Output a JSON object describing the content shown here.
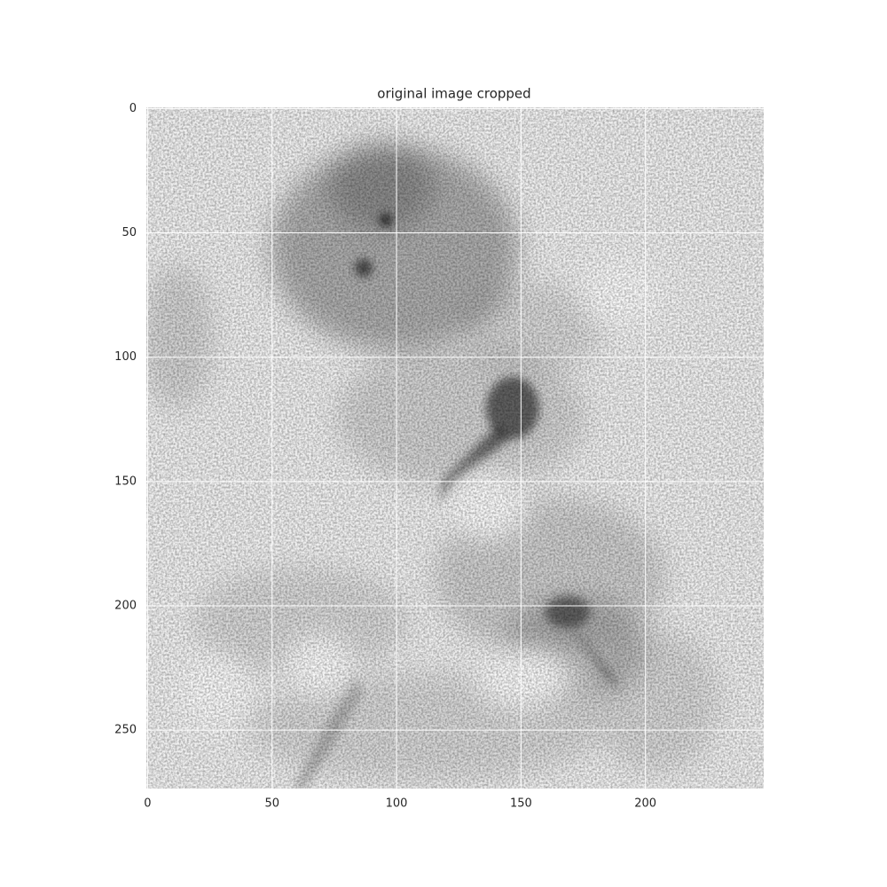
{
  "chart_data": {
    "type": "image",
    "title": "original image cropped",
    "xlim": [
      -0.5,
      247.5
    ],
    "ylim": [
      273.5,
      -0.5
    ],
    "xticks": [
      0,
      50,
      100,
      150,
      200
    ],
    "yticks": [
      0,
      50,
      100,
      150,
      200,
      250
    ],
    "grid": true,
    "grid_color": "#ffffff",
    "colormap": "gray_r"
  }
}
